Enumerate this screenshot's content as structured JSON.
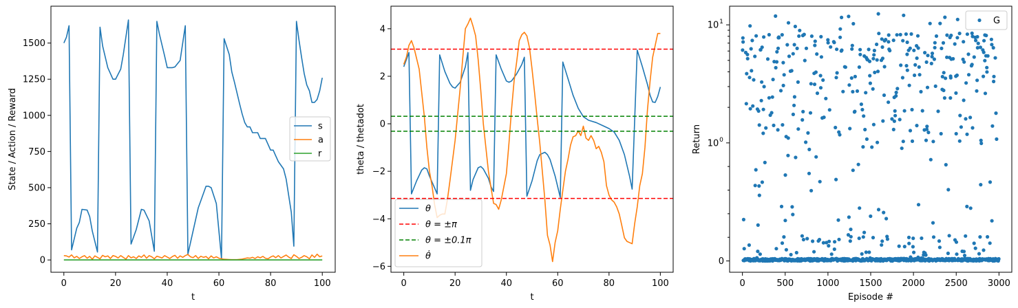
{
  "chart_data": [
    {
      "type": "line",
      "xlabel": "t",
      "ylabel": "State / Action / Reward",
      "xlim": [
        -5,
        105
      ],
      "ylim": [
        -85,
        1755
      ],
      "xticks": [
        0,
        20,
        40,
        60,
        80,
        100
      ],
      "yticks": [
        0,
        250,
        500,
        750,
        1000,
        1250,
        1500
      ],
      "grid": false,
      "legend": "center-right",
      "series": [
        {
          "name": "s",
          "color": "#1f77b4",
          "x": [
            0,
            1,
            2,
            3,
            5,
            6,
            7,
            9,
            10,
            11,
            13,
            14,
            15,
            17,
            19,
            20,
            22,
            23,
            25,
            26,
            28,
            30,
            31,
            33,
            35,
            36,
            37,
            39,
            40,
            42,
            43,
            45,
            47,
            48,
            50,
            52,
            53,
            55,
            56,
            57,
            59,
            61,
            62,
            64,
            65,
            66,
            68,
            69,
            70,
            71,
            72,
            73,
            74,
            75,
            76,
            77,
            78,
            79,
            80,
            81,
            82,
            83,
            85,
            86,
            88,
            89,
            90,
            91,
            92,
            93,
            94,
            95,
            96,
            97,
            98,
            99,
            100
          ],
          "y": [
            1500,
            1540,
            1620,
            70,
            220,
            260,
            350,
            345,
            300,
            200,
            55,
            1610,
            1480,
            1330,
            1250,
            1250,
            1320,
            1420,
            1660,
            110,
            210,
            350,
            345,
            270,
            60,
            1650,
            1560,
            1410,
            1330,
            1330,
            1335,
            1380,
            1620,
            40,
            200,
            360,
            410,
            510,
            510,
            500,
            390,
            10,
            1530,
            1420,
            1300,
            1230,
            1080,
            1010,
            950,
            920,
            920,
            880,
            880,
            880,
            840,
            840,
            840,
            800,
            760,
            760,
            720,
            680,
            630,
            560,
            330,
            95,
            1650,
            1520,
            1400,
            1290,
            1210,
            1170,
            1090,
            1090,
            1110,
            1170,
            1260
          ]
        },
        {
          "name": "a",
          "color": "#ff7f0e",
          "x": [
            0,
            1,
            2,
            3,
            4,
            5,
            6,
            7,
            8,
            9,
            10,
            11,
            12,
            13,
            14,
            15,
            16,
            17,
            18,
            19,
            20,
            21,
            22,
            23,
            24,
            25,
            26,
            27,
            28,
            29,
            30,
            31,
            32,
            33,
            34,
            35,
            36,
            37,
            38,
            39,
            40,
            41,
            42,
            43,
            44,
            45,
            46,
            47,
            48,
            49,
            50,
            51,
            52,
            53,
            54,
            55,
            56,
            57,
            58,
            59,
            60,
            61,
            62,
            63,
            64,
            65,
            66,
            67,
            68,
            69,
            70,
            71,
            72,
            73,
            74,
            75,
            76,
            77,
            78,
            79,
            80,
            81,
            82,
            83,
            84,
            85,
            86,
            87,
            88,
            89,
            90,
            91,
            92,
            93,
            94,
            95,
            96,
            97,
            98,
            99,
            100
          ],
          "y": [
            30,
            28,
            20,
            35,
            15,
            25,
            10,
            22,
            30,
            12,
            25,
            5,
            28,
            18,
            8,
            32,
            22,
            28,
            10,
            30,
            25,
            14,
            30,
            18,
            6,
            30,
            15,
            22,
            10,
            28,
            18,
            35,
            12,
            30,
            22,
            8,
            26,
            20,
            14,
            30,
            20,
            10,
            24,
            32,
            12,
            28,
            18,
            30,
            38,
            22,
            16,
            30,
            10,
            26,
            18,
            24,
            8,
            28,
            14,
            22,
            12,
            8,
            5,
            4,
            3,
            2,
            2,
            2,
            4,
            6,
            10,
            14,
            12,
            18,
            10,
            22,
            15,
            25,
            12,
            8,
            20,
            28,
            16,
            30,
            14,
            24,
            34,
            20,
            10,
            36,
            25,
            10,
            18,
            30,
            22,
            8,
            35,
            18,
            40,
            22,
            28
          ]
        },
        {
          "name": "r",
          "color": "#2ca02c",
          "x": [
            0,
            100
          ],
          "y": [
            0,
            0
          ]
        }
      ]
    },
    {
      "type": "line",
      "xlabel": "t",
      "ylabel": "theta / thetadot",
      "xlim": [
        -5,
        105
      ],
      "ylim": [
        -6.25,
        4.95
      ],
      "xticks": [
        0,
        20,
        40,
        60,
        80,
        100
      ],
      "yticks": [
        -6,
        -4,
        -2,
        0,
        2,
        4
      ],
      "grid": false,
      "legend": "bottom-left",
      "series": [
        {
          "name": "θ",
          "legend_label": "θ",
          "color": "#1f77b4",
          "x": [
            0,
            1,
            2,
            3,
            5,
            7,
            8,
            9,
            10,
            12,
            13,
            14,
            16,
            18,
            19,
            20,
            22,
            24,
            25,
            26,
            27,
            29,
            30,
            31,
            33,
            34,
            35,
            36,
            38,
            40,
            41,
            42,
            44,
            46,
            47,
            48,
            50,
            52,
            53,
            55,
            56,
            57,
            59,
            61,
            62,
            64,
            66,
            68,
            70,
            72,
            75,
            78,
            80,
            82,
            84,
            86,
            88,
            89,
            91,
            93,
            95,
            96,
            97,
            98,
            99,
            100
          ],
          "y": [
            2.4,
            2.7,
            3.0,
            -2.95,
            -2.4,
            -1.95,
            -1.85,
            -1.9,
            -2.2,
            -2.7,
            -2.95,
            2.9,
            2.2,
            1.7,
            1.55,
            1.5,
            1.75,
            2.4,
            3.0,
            -2.8,
            -2.35,
            -1.85,
            -1.8,
            -1.9,
            -2.3,
            -2.65,
            -2.85,
            2.9,
            2.3,
            1.8,
            1.75,
            1.8,
            2.1,
            2.5,
            2.8,
            -3.05,
            -2.4,
            -1.55,
            -1.3,
            -1.2,
            -1.3,
            -1.5,
            -2.2,
            -3.1,
            2.6,
            1.9,
            1.2,
            0.65,
            0.3,
            0.15,
            0.05,
            -0.1,
            -0.2,
            -0.35,
            -0.7,
            -1.3,
            -2.2,
            -2.75,
            3.1,
            2.4,
            1.65,
            1.2,
            0.92,
            0.9,
            1.15,
            1.55
          ]
        },
        {
          "name": "θ̇",
          "legend_label": "θ̇",
          "color": "#ff7f0e",
          "x": [
            0,
            1,
            2,
            3,
            4,
            6,
            8,
            9,
            10,
            11,
            12,
            13,
            14,
            15,
            16,
            17,
            18,
            20,
            22,
            23,
            24,
            25,
            26,
            27,
            28,
            29,
            30,
            31,
            32,
            33,
            34,
            35,
            36,
            37,
            38,
            40,
            41,
            42,
            43,
            44,
            45,
            46,
            47,
            48,
            49,
            50,
            51,
            52,
            53,
            54,
            55,
            56,
            57,
            58,
            59,
            60,
            61,
            62,
            63,
            64,
            65,
            66,
            67,
            68,
            69,
            70,
            71,
            72,
            73,
            74,
            75,
            76,
            77,
            78,
            79,
            80,
            81,
            82,
            83,
            84,
            85,
            86,
            87,
            88,
            89,
            90,
            91,
            92,
            93,
            94,
            95,
            96,
            97,
            98,
            99,
            100
          ],
          "y": [
            2.5,
            2.8,
            3.3,
            3.5,
            3.2,
            2.3,
            0.3,
            -1.0,
            -2.0,
            -2.6,
            -3.4,
            -3.95,
            -3.85,
            -3.8,
            -3.8,
            -3.2,
            -2.4,
            -0.7,
            1.5,
            2.8,
            4.0,
            4.2,
            4.45,
            4.1,
            3.7,
            2.7,
            1.4,
            0.0,
            -1.0,
            -2.0,
            -2.7,
            -3.35,
            -3.4,
            -3.6,
            -3.2,
            -2.1,
            -0.8,
            0.6,
            1.8,
            2.6,
            3.5,
            3.75,
            3.85,
            3.7,
            3.2,
            2.3,
            1.3,
            0.2,
            -0.8,
            -2.0,
            -3.2,
            -4.7,
            -5.1,
            -5.8,
            -5.0,
            -4.5,
            -3.6,
            -2.8,
            -2.0,
            -1.5,
            -0.9,
            -0.55,
            -0.5,
            -0.3,
            -0.5,
            -0.1,
            -0.6,
            -0.7,
            -0.5,
            -0.7,
            -1.05,
            -0.95,
            -1.2,
            -1.6,
            -2.6,
            -3.0,
            -3.2,
            -3.3,
            -3.5,
            -3.8,
            -4.3,
            -4.8,
            -4.95,
            -5.0,
            -5.05,
            -4.2,
            -3.5,
            -2.6,
            -2.1,
            -1.0,
            0.6,
            1.8,
            2.8,
            3.3,
            3.8,
            3.8
          ]
        },
        {
          "name": "θ = ±π",
          "legend_label": "θ = ±π",
          "color": "#ff0000",
          "dashed": true,
          "hlines": [
            3.14159,
            -3.14159
          ]
        },
        {
          "name": "θ = ±0.1π",
          "legend_label": "θ = ±0.1π",
          "color": "#008000",
          "dashed": true,
          "hlines": [
            0.314159,
            -0.314159
          ]
        }
      ],
      "legend_order": [
        "θ",
        "θ = ±π",
        "θ = ±0.1π",
        "θ̇"
      ]
    },
    {
      "type": "scatter",
      "xlabel": "Episode #",
      "ylabel": "Return",
      "xlim": [
        -150,
        3150
      ],
      "yscale": "symlog",
      "xticks": [
        0,
        500,
        1000,
        1500,
        2000,
        2500,
        3000
      ],
      "yticks": [
        0,
        1,
        10
      ],
      "ytick_labels": [
        "0",
        "10⁰",
        "10¹"
      ],
      "grid": false,
      "legend": "top-right",
      "series": [
        {
          "name": "G",
          "color": "#1f77b4",
          "n_points": 3000,
          "zero_fraction": 0.55,
          "value_range": [
            0.05,
            12.5
          ]
        }
      ]
    }
  ]
}
